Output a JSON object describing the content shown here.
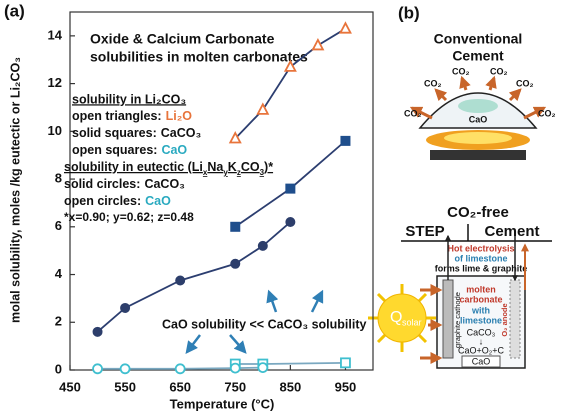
{
  "chart_data": {
    "type": "line",
    "panel_label": "(a)",
    "title": "Oxide & Calcium Carbonate",
    "subtitle": "solubilities in molten carbonates",
    "xlabel": "Temperature (°C)",
    "ylabel": "molal solubility, moles /kg eutectic or Li₂CO₃",
    "xlim": [
      450,
      1000
    ],
    "ylim": [
      0,
      15
    ],
    "xticks": [
      450,
      550,
      650,
      750,
      850,
      950
    ],
    "yticks": [
      0,
      2,
      4,
      6,
      8,
      10,
      12,
      14
    ],
    "annotation": "CaO solubility << CaCO₃ solubility",
    "series_groups": [
      {
        "heading": "solubility in Li₂CO₃",
        "series": [
          {
            "name": "Li₂O",
            "marker_text": "open triangles:",
            "marker": "triangle",
            "filled": false,
            "color": "#e8743b",
            "label_color": "#e8743b",
            "line_color": "#2c3e70",
            "x": [
              750,
              800,
              850,
              900,
              950
            ],
            "values": [
              9.7,
              10.9,
              12.7,
              13.6,
              14.3
            ]
          },
          {
            "name": "CaCO₃",
            "marker_text": "solid squares:",
            "marker": "square",
            "filled": true,
            "color": "#1f4e8c",
            "label_color": "#111111",
            "line_color": "#2c3e70",
            "x": [
              750,
              850,
              950
            ],
            "values": [
              6.0,
              7.6,
              9.6
            ]
          },
          {
            "name": "CaO",
            "marker_text": "open squares:",
            "marker": "square",
            "filled": false,
            "color": "#3fbfcf",
            "label_color": "#2aaac0",
            "line_color": "#7aa8c0",
            "x": [
              750,
              800,
              950
            ],
            "values": [
              0.25,
              0.25,
              0.3
            ]
          }
        ]
      },
      {
        "heading": [
          "solubility in eutectic (Li",
          "x",
          "Na",
          "y",
          "K",
          "z",
          "CO",
          "3",
          ")*"
        ],
        "footnote": "*x=0.90; y=0.62; z=0.48",
        "series": [
          {
            "name": "CaCO₃",
            "marker_text": "solid circles:",
            "marker": "circle",
            "filled": true,
            "color": "#2d3e6b",
            "label_color": "#111111",
            "line_color": "#2c3e70",
            "x": [
              500,
              550,
              650,
              750,
              800,
              850
            ],
            "values": [
              1.6,
              2.6,
              3.75,
              4.45,
              5.2,
              6.2
            ]
          },
          {
            "name": "CaO",
            "marker_text": "open circles:",
            "marker": "circle",
            "filled": false,
            "color": "#3fbfcf",
            "label_color": "#2aaac0",
            "line_color": "#7aa8c0",
            "x": [
              500,
              550,
              650,
              750,
              800
            ],
            "values": [
              0.05,
              0.05,
              0.05,
              0.08,
              0.1
            ]
          }
        ]
      }
    ]
  },
  "diagram": {
    "panel_label": "(b)",
    "conventional": {
      "title": [
        "Conventional",
        "Cement"
      ],
      "co2_labels": [
        "CO₂",
        "CO₂",
        "CO₂",
        "CO₂",
        "CO₂",
        "CO₂"
      ],
      "product": "CaO"
    },
    "step": {
      "title_top": "CO₂-free",
      "title_left": "STEP",
      "title_right": "Cement",
      "process": [
        "Hot electrolysis",
        "of limestone",
        "forms lime & graphite"
      ],
      "electrolyte": [
        "molten",
        "carbonate",
        "with",
        "limestone"
      ],
      "reaction": [
        "CaCO₃",
        "↓",
        "CaO+O₂+C"
      ],
      "product": "CaO",
      "cathode": "graphite cathode",
      "anode": "O₂ anode",
      "heat": [
        "Q",
        "solar"
      ]
    }
  }
}
